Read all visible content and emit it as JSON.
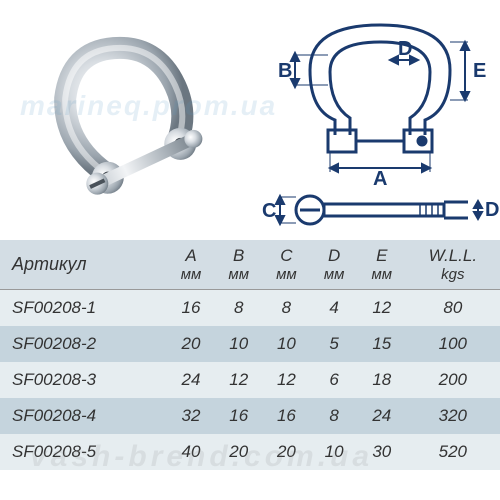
{
  "watermarks": {
    "wm1": "marineq.prom.ua",
    "wm2": "vash-brend.com.ua"
  },
  "diagram": {
    "labels": {
      "A": "A",
      "B": "B",
      "C": "C",
      "D": "D",
      "E": "E"
    },
    "stroke_color": "#1a3a6e",
    "stroke_width": 3
  },
  "table": {
    "header_bg": "#d3dde4",
    "row_odd_bg": "#e6edf0",
    "row_even_bg": "#c5d4dd",
    "text_color": "#333333",
    "font_style": "italic",
    "columns": [
      {
        "label": "Артикул",
        "unit": ""
      },
      {
        "label": "A",
        "unit": "мм"
      },
      {
        "label": "B",
        "unit": "мм"
      },
      {
        "label": "C",
        "unit": "мм"
      },
      {
        "label": "D",
        "unit": "мм"
      },
      {
        "label": "E",
        "unit": "мм"
      },
      {
        "label": "W.L.L.",
        "unit": "kgs"
      }
    ],
    "rows": [
      [
        "SF00208-1",
        "16",
        "8",
        "8",
        "4",
        "12",
        "80"
      ],
      [
        "SF00208-2",
        "20",
        "10",
        "10",
        "5",
        "15",
        "100"
      ],
      [
        "SF00208-3",
        "24",
        "12",
        "12",
        "6",
        "18",
        "200"
      ],
      [
        "SF00208-4",
        "32",
        "16",
        "16",
        "8",
        "24",
        "320"
      ],
      [
        "SF00208-5",
        "40",
        "20",
        "20",
        "10",
        "30",
        "520"
      ]
    ]
  }
}
